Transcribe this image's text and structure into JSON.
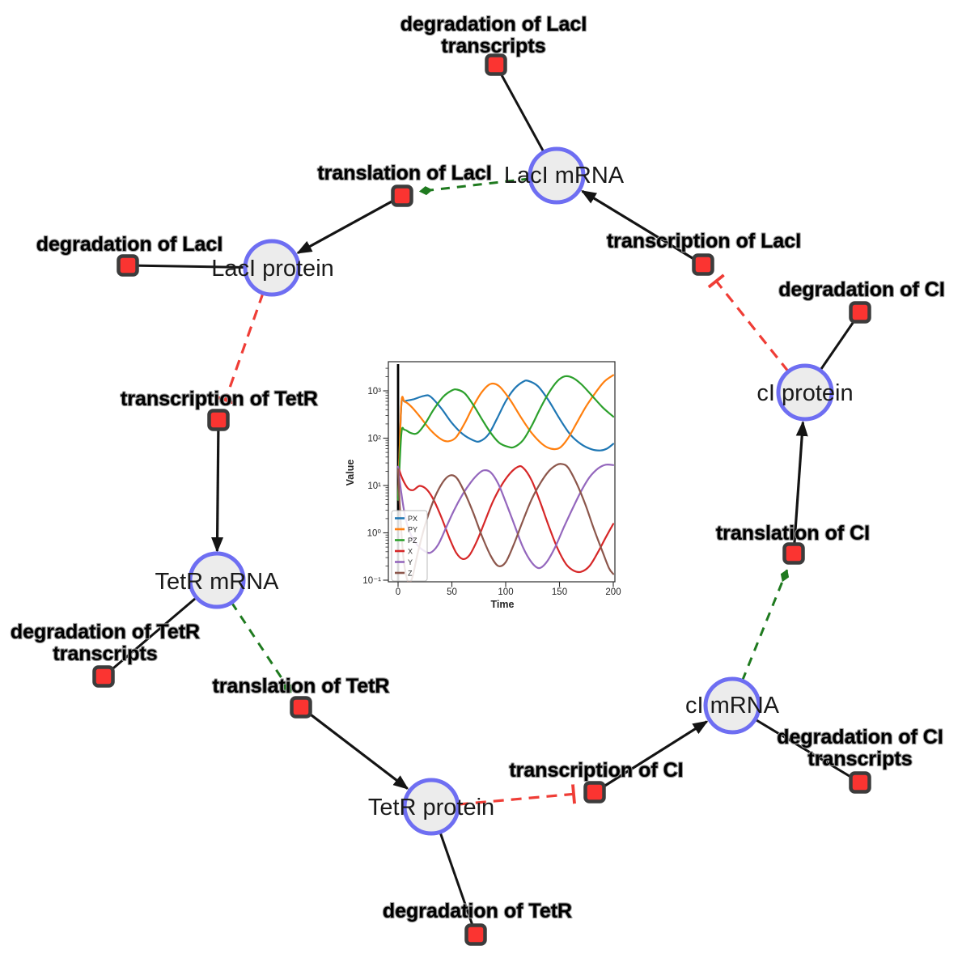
{
  "network": {
    "species": [
      {
        "id": "laci-mrna",
        "label": "LacI mRNA"
      },
      {
        "id": "laci-protein",
        "label": "LacI protein"
      },
      {
        "id": "tetr-mrna",
        "label": "TetR mRNA"
      },
      {
        "id": "tetr-protein",
        "label": "TetR protein"
      },
      {
        "id": "ci-mrna",
        "label": "cI mRNA"
      },
      {
        "id": "ci-protein",
        "label": "cI protein"
      }
    ],
    "reactions": [
      {
        "id": "degradation-of-laci-transcripts",
        "label_line1": "degradation of LacI",
        "label_line2": "transcripts"
      },
      {
        "id": "translation-of-laci",
        "label": "translation of LacI"
      },
      {
        "id": "degradation-of-laci",
        "label": "degradation of LacI"
      },
      {
        "id": "transcription-of-laci",
        "label": "transcription of LacI"
      },
      {
        "id": "degradation-of-ci",
        "label": "degradation of CI"
      },
      {
        "id": "transcription-of-tetr",
        "label": "transcription of TetR"
      },
      {
        "id": "degradation-of-tetr-transcripts",
        "label_line1": "degradation of TetR",
        "label_line2": "transcripts"
      },
      {
        "id": "translation-of-tetr",
        "label": "translation of TetR"
      },
      {
        "id": "degradation-of-tetr",
        "label": "degradation of TetR"
      },
      {
        "id": "transcription-of-ci",
        "label": "transcription of CI"
      },
      {
        "id": "degradation-of-ci-transcripts",
        "label_line1": "degradation of CI",
        "label_line2": "transcripts"
      },
      {
        "id": "translation-of-ci",
        "label": "translation of CI"
      }
    ],
    "edge_colors": {
      "production": "#141414",
      "consumption": "#141414",
      "modifier": "#1f7a1f",
      "inhibition": "#ef3d36"
    },
    "node_colors": {
      "species_fill": "#ececec",
      "species_border": "#6e6ef2",
      "reaction_fill": "#fb3431",
      "reaction_border": "#3c3c3c"
    }
  },
  "chart_data": {
    "type": "line",
    "title": "",
    "xlabel": "Time",
    "ylabel": "Value",
    "y_scale": "log",
    "x_range": [
      0,
      200
    ],
    "ylim": [
      0.1,
      3980
    ],
    "xticks": [
      "0",
      "50",
      "100",
      "150",
      "200"
    ],
    "xtick_values": [
      0,
      50,
      100,
      150,
      200
    ],
    "yticks": [
      "10⁻¹",
      "10⁰",
      "10¹",
      "10²",
      "10³"
    ],
    "ytick_values": [
      0.1,
      1,
      10,
      100,
      1000
    ],
    "legend_position": "lower left",
    "event_line_x": 0,
    "series": [
      {
        "name": "PX",
        "color": "#1f77b4",
        "points": [
          [
            0,
            5
          ],
          [
            3,
            480
          ],
          [
            6,
            600
          ],
          [
            14,
            660
          ],
          [
            24,
            780
          ],
          [
            30,
            760
          ],
          [
            40,
            430
          ],
          [
            50,
            210
          ],
          [
            60,
            122
          ],
          [
            70,
            90
          ],
          [
            76,
            86
          ],
          [
            84,
            120
          ],
          [
            92,
            260
          ],
          [
            100,
            600
          ],
          [
            108,
            1100
          ],
          [
            116,
            1550
          ],
          [
            121,
            1620
          ],
          [
            130,
            1250
          ],
          [
            140,
            620
          ],
          [
            150,
            260
          ],
          [
            160,
            120
          ],
          [
            170,
            75
          ],
          [
            180,
            58
          ],
          [
            188,
            55
          ],
          [
            194,
            60
          ],
          [
            200,
            76
          ]
        ]
      },
      {
        "name": "PY",
        "color": "#ff7f0e",
        "points": [
          [
            0,
            5
          ],
          [
            3,
            500
          ],
          [
            6,
            590
          ],
          [
            12,
            470
          ],
          [
            20,
            290
          ],
          [
            30,
            150
          ],
          [
            40,
            95
          ],
          [
            47,
            86
          ],
          [
            54,
            105
          ],
          [
            62,
            210
          ],
          [
            70,
            480
          ],
          [
            78,
            950
          ],
          [
            86,
            1400
          ],
          [
            94,
            1250
          ],
          [
            104,
            650
          ],
          [
            114,
            280
          ],
          [
            124,
            130
          ],
          [
            134,
            75
          ],
          [
            142,
            60
          ],
          [
            150,
            62
          ],
          [
            158,
            100
          ],
          [
            166,
            210
          ],
          [
            175,
            480
          ],
          [
            184,
            950
          ],
          [
            192,
            1600
          ],
          [
            200,
            2150
          ]
        ]
      },
      {
        "name": "PZ",
        "color": "#2ca02c",
        "points": [
          [
            0,
            5
          ],
          [
            3,
            120
          ],
          [
            6,
            150
          ],
          [
            12,
            128
          ],
          [
            18,
            128
          ],
          [
            25,
            200
          ],
          [
            33,
            400
          ],
          [
            42,
            750
          ],
          [
            50,
            1020
          ],
          [
            55,
            1060
          ],
          [
            62,
            880
          ],
          [
            70,
            500
          ],
          [
            78,
            250
          ],
          [
            86,
            130
          ],
          [
            94,
            80
          ],
          [
            102,
            66
          ],
          [
            108,
            65
          ],
          [
            116,
            90
          ],
          [
            124,
            180
          ],
          [
            132,
            420
          ],
          [
            140,
            900
          ],
          [
            148,
            1600
          ],
          [
            155,
            2020
          ],
          [
            162,
            1900
          ],
          [
            170,
            1400
          ],
          [
            180,
            800
          ],
          [
            190,
            450
          ],
          [
            200,
            285
          ]
        ]
      },
      {
        "name": "X",
        "color": "#d62728",
        "points": [
          [
            0,
            25
          ],
          [
            4,
            14
          ],
          [
            9,
            8.8
          ],
          [
            14,
            8
          ],
          [
            20,
            9.8
          ],
          [
            26,
            8.5
          ],
          [
            32,
            5.5
          ],
          [
            40,
            2.2
          ],
          [
            48,
            0.75
          ],
          [
            54,
            0.38
          ],
          [
            60,
            0.28
          ],
          [
            66,
            0.33
          ],
          [
            73,
            0.65
          ],
          [
            80,
            1.6
          ],
          [
            88,
            4.5
          ],
          [
            96,
            10
          ],
          [
            104,
            18
          ],
          [
            111,
            24.5
          ],
          [
            116,
            24
          ],
          [
            124,
            13
          ],
          [
            132,
            4.5
          ],
          [
            140,
            1.4
          ],
          [
            148,
            0.48
          ],
          [
            156,
            0.22
          ],
          [
            163,
            0.16
          ],
          [
            170,
            0.15
          ],
          [
            178,
            0.2
          ],
          [
            186,
            0.4
          ],
          [
            193,
            0.8
          ],
          [
            200,
            1.55
          ]
        ]
      },
      {
        "name": "Y",
        "color": "#9467bd",
        "points": [
          [
            0,
            25
          ],
          [
            3,
            7
          ],
          [
            7,
            2
          ],
          [
            12,
            0.9
          ],
          [
            18,
            0.55
          ],
          [
            24,
            0.42
          ],
          [
            30,
            0.38
          ],
          [
            37,
            0.55
          ],
          [
            44,
            1.2
          ],
          [
            52,
            3
          ],
          [
            60,
            6.5
          ],
          [
            68,
            12
          ],
          [
            75,
            18
          ],
          [
            80,
            21
          ],
          [
            86,
            19
          ],
          [
            93,
            11
          ],
          [
            100,
            4.5
          ],
          [
            108,
            1.5
          ],
          [
            116,
            0.5
          ],
          [
            124,
            0.24
          ],
          [
            131,
            0.18
          ],
          [
            138,
            0.24
          ],
          [
            146,
            0.5
          ],
          [
            154,
            1.3
          ],
          [
            162,
            3.2
          ],
          [
            170,
            7.5
          ],
          [
            178,
            15
          ],
          [
            186,
            23
          ],
          [
            193,
            27.5
          ],
          [
            200,
            27
          ]
        ]
      },
      {
        "name": "Z",
        "color": "#8c564b",
        "points": [
          [
            0,
            22
          ],
          [
            2,
            2.5
          ],
          [
            5,
            0.3
          ],
          [
            9,
            0.095
          ],
          [
            13,
            0.11
          ],
          [
            18,
            0.35
          ],
          [
            24,
            1.2
          ],
          [
            30,
            3.2
          ],
          [
            36,
            7
          ],
          [
            43,
            13
          ],
          [
            49,
            16.5
          ],
          [
            55,
            14
          ],
          [
            62,
            7
          ],
          [
            70,
            2.6
          ],
          [
            78,
            0.85
          ],
          [
            86,
            0.33
          ],
          [
            93,
            0.2
          ],
          [
            100,
            0.24
          ],
          [
            108,
            0.6
          ],
          [
            116,
            1.8
          ],
          [
            124,
            5
          ],
          [
            132,
            11
          ],
          [
            140,
            20
          ],
          [
            147,
            27
          ],
          [
            152,
            28.5
          ],
          [
            158,
            24
          ],
          [
            166,
            11
          ],
          [
            174,
            4
          ],
          [
            182,
            1.2
          ],
          [
            190,
            0.4
          ],
          [
            196,
            0.18
          ],
          [
            200,
            0.135
          ]
        ]
      }
    ]
  }
}
